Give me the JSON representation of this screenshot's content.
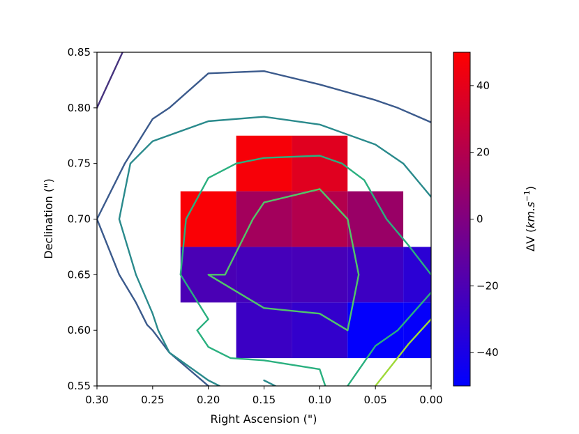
{
  "chart_data": {
    "type": "heatmap",
    "title": "",
    "xlabel": "Right Ascension (\")",
    "ylabel": "Declination (\")",
    "xlim": [
      0.3,
      0.0
    ],
    "ylim": [
      0.55,
      0.85
    ],
    "x_ticks": [
      "0.30",
      "0.25",
      "0.20",
      "0.15",
      "0.10",
      "0.05",
      "0.00"
    ],
    "x_tick_values": [
      0.3,
      0.25,
      0.2,
      0.15,
      0.1,
      0.05,
      0.0
    ],
    "y_ticks": [
      "0.55",
      "0.60",
      "0.65",
      "0.70",
      "0.75",
      "0.80",
      "0.85"
    ],
    "y_tick_values": [
      0.55,
      0.6,
      0.65,
      0.7,
      0.75,
      0.8,
      0.85
    ],
    "grid": false,
    "cell_size": 0.05,
    "cells": [
      {
        "ra": 0.15,
        "dec": 0.75,
        "dv": 47
      },
      {
        "ra": 0.1,
        "dec": 0.75,
        "dv": 38
      },
      {
        "ra": 0.2,
        "dec": 0.7,
        "dv": 48
      },
      {
        "ra": 0.15,
        "dec": 0.7,
        "dv": 14
      },
      {
        "ra": 0.1,
        "dec": 0.7,
        "dv": 20
      },
      {
        "ra": 0.05,
        "dec": 0.7,
        "dv": 10
      },
      {
        "ra": 0.2,
        "dec": 0.65,
        "dv": -21
      },
      {
        "ra": 0.15,
        "dec": 0.65,
        "dv": -23
      },
      {
        "ra": 0.1,
        "dec": 0.65,
        "dv": -22
      },
      {
        "ra": 0.05,
        "dec": 0.65,
        "dv": -26
      },
      {
        "ra": 0.0,
        "dec": 0.65,
        "dv": -33
      },
      {
        "ra": 0.15,
        "dec": 0.6,
        "dv": -27
      },
      {
        "ra": 0.1,
        "dec": 0.6,
        "dv": -30
      },
      {
        "ra": 0.05,
        "dec": 0.6,
        "dv": -49
      },
      {
        "ra": 0.0,
        "dec": 0.6,
        "dv": -48
      }
    ],
    "colorbar": {
      "label_prefix": "ΔV (",
      "label_unit": "km.s",
      "label_exp": "−1",
      "label_suffix": ")",
      "range": [
        -50,
        50
      ],
      "ticks": [
        -40,
        -20,
        0,
        20,
        40
      ],
      "tick_labels": [
        "−40",
        "−20",
        "0",
        "20",
        "40"
      ],
      "color_min": "#0000ff",
      "color_max": "#ff0000"
    },
    "contours": [
      {
        "color": "#46337e",
        "points": [
          [
            0.3,
            0.8
          ],
          [
            0.277,
            0.85
          ]
        ]
      },
      {
        "color": "#3b5a8c",
        "points": [
          [
            0.3,
            0.7
          ],
          [
            0.275,
            0.75
          ],
          [
            0.25,
            0.79
          ],
          [
            0.235,
            0.8
          ],
          [
            0.2,
            0.831
          ],
          [
            0.15,
            0.833
          ],
          [
            0.1,
            0.821
          ],
          [
            0.05,
            0.807
          ],
          [
            0.03,
            0.8
          ],
          [
            0.0,
            0.787
          ]
        ]
      },
      {
        "color": "#3b5a8c",
        "points": [
          [
            0.3,
            0.7
          ],
          [
            0.28,
            0.65
          ],
          [
            0.265,
            0.625
          ],
          [
            0.255,
            0.605
          ],
          [
            0.25,
            0.6
          ],
          [
            0.235,
            0.58
          ],
          [
            0.2,
            0.55
          ]
        ]
      },
      {
        "color": "#2a8a8c",
        "points": [
          [
            0.19,
            0.55
          ],
          [
            0.2,
            0.555
          ],
          [
            0.235,
            0.58
          ],
          [
            0.245,
            0.6
          ],
          [
            0.25,
            0.615
          ],
          [
            0.265,
            0.65
          ],
          [
            0.28,
            0.7
          ],
          [
            0.27,
            0.75
          ],
          [
            0.25,
            0.77
          ],
          [
            0.2,
            0.788
          ],
          [
            0.15,
            0.792
          ],
          [
            0.1,
            0.785
          ],
          [
            0.05,
            0.767
          ],
          [
            0.025,
            0.75
          ],
          [
            0.0,
            0.72
          ]
        ]
      },
      {
        "color": "#2a8a8c",
        "points": [
          [
            0.14,
            0.55
          ],
          [
            0.15,
            0.555
          ]
        ]
      },
      {
        "color": "#2ab07f",
        "points": [
          [
            0.21,
            0.6
          ],
          [
            0.2,
            0.61
          ],
          [
            0.225,
            0.65
          ],
          [
            0.22,
            0.7
          ],
          [
            0.2,
            0.737
          ],
          [
            0.175,
            0.75
          ],
          [
            0.15,
            0.755
          ],
          [
            0.1,
            0.757
          ],
          [
            0.08,
            0.75
          ],
          [
            0.06,
            0.735
          ],
          [
            0.04,
            0.7
          ],
          [
            0.02,
            0.676
          ],
          [
            0.0,
            0.65
          ]
        ]
      },
      {
        "color": "#2ab07f",
        "points": [
          [
            0.21,
            0.6
          ],
          [
            0.2,
            0.585
          ],
          [
            0.18,
            0.575
          ],
          [
            0.15,
            0.573
          ],
          [
            0.1,
            0.565
          ],
          [
            0.095,
            0.55
          ]
        ]
      },
      {
        "color": "#2ab07f",
        "points": [
          [
            0.075,
            0.55
          ],
          [
            0.05,
            0.586
          ],
          [
            0.03,
            0.6
          ],
          [
            0.0,
            0.634
          ]
        ]
      },
      {
        "color": "#52c569",
        "points": [
          [
            0.1,
            0.727
          ],
          [
            0.15,
            0.715
          ],
          [
            0.16,
            0.7
          ],
          [
            0.185,
            0.65
          ],
          [
            0.2,
            0.65
          ],
          [
            0.15,
            0.62
          ],
          [
            0.1,
            0.615
          ],
          [
            0.075,
            0.6
          ],
          [
            0.065,
            0.65
          ],
          [
            0.075,
            0.7
          ],
          [
            0.1,
            0.727
          ]
        ]
      },
      {
        "color": "#9fd938",
        "points": [
          [
            0.05,
            0.55
          ],
          [
            0.02,
            0.588
          ],
          [
            0.0,
            0.61
          ]
        ]
      }
    ]
  }
}
